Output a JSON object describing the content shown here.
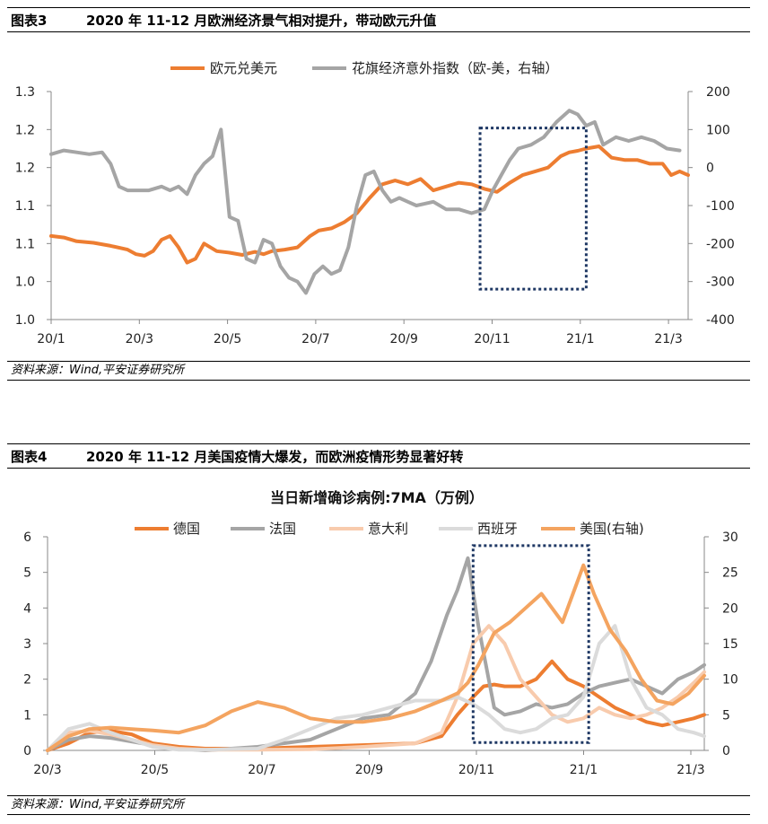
{
  "figure3": {
    "label": "图表3",
    "title": "2020 年 11-12 月欧洲经济景气相对提升，带动欧元升值",
    "source": "资料来源：Wind,平安证券研究所"
  },
  "figure4": {
    "label": "图表4",
    "title": "2020 年 11-12 月美国疫情大爆发，而欧洲疫情形势显著好转",
    "source": "资料来源：Wind,平安证券研究所"
  },
  "chart_data": [
    {
      "type": "line",
      "title": "",
      "x_ticks": [
        "20/1",
        "20/3",
        "20/5",
        "20/7",
        "20/9",
        "20/11",
        "21/1",
        "21/3"
      ],
      "y_left_ticks": [
        "1.3",
        "1.2",
        "1.2",
        "1.1",
        "1.1",
        "1.0",
        "1.0"
      ],
      "y_right_ticks": [
        "200",
        "100",
        "0",
        "-100",
        "-200",
        "-300",
        "-400"
      ],
      "ylim_left": [
        1.0,
        1.3
      ],
      "ylim_right": [
        -400,
        200
      ],
      "xlim": [
        0,
        15
      ],
      "series": [
        {
          "name": "欧元兑美元",
          "axis": "left",
          "color": "#ED7D31",
          "x": [
            0,
            0.3,
            0.6,
            1.0,
            1.4,
            1.8,
            2.0,
            2.2,
            2.4,
            2.6,
            2.8,
            3.0,
            3.2,
            3.4,
            3.6,
            3.9,
            4.2,
            4.5,
            4.8,
            5.0,
            5.2,
            5.5,
            5.8,
            6.1,
            6.3,
            6.6,
            6.9,
            7.2,
            7.5,
            7.8,
            8.1,
            8.4,
            8.7,
            9.0,
            9.3,
            9.6,
            9.9,
            10.2,
            10.5,
            10.8,
            11.1,
            11.4,
            11.7,
            12.0,
            12.2,
            12.4,
            12.6,
            12.9,
            13.2,
            13.5,
            13.8,
            14.1,
            14.4,
            14.6,
            14.8,
            15.0
          ],
          "values": [
            1.11,
            1.108,
            1.103,
            1.101,
            1.097,
            1.092,
            1.086,
            1.084,
            1.09,
            1.105,
            1.11,
            1.095,
            1.075,
            1.08,
            1.1,
            1.09,
            1.088,
            1.085,
            1.089,
            1.086,
            1.09,
            1.092,
            1.095,
            1.11,
            1.117,
            1.12,
            1.128,
            1.14,
            1.16,
            1.178,
            1.183,
            1.178,
            1.185,
            1.17,
            1.175,
            1.18,
            1.178,
            1.172,
            1.168,
            1.18,
            1.19,
            1.195,
            1.2,
            1.215,
            1.22,
            1.222,
            1.225,
            1.228,
            1.213,
            1.21,
            1.21,
            1.205,
            1.205,
            1.19,
            1.195,
            1.19
          ]
        },
        {
          "name": "花旗经济意外指数（欧-美，右轴）",
          "axis": "right",
          "color": "#A5A5A5",
          "x": [
            0,
            0.3,
            0.6,
            0.9,
            1.2,
            1.4,
            1.6,
            1.8,
            2.0,
            2.3,
            2.6,
            2.8,
            3.0,
            3.2,
            3.4,
            3.6,
            3.8,
            4.0,
            4.2,
            4.4,
            4.6,
            4.8,
            5.0,
            5.2,
            5.4,
            5.6,
            5.8,
            6.0,
            6.2,
            6.4,
            6.6,
            6.8,
            7.0,
            7.2,
            7.4,
            7.6,
            7.8,
            8.0,
            8.2,
            8.4,
            8.6,
            8.8,
            9.0,
            9.3,
            9.6,
            9.9,
            10.2,
            10.4,
            10.6,
            10.8,
            11.0,
            11.3,
            11.6,
            11.9,
            12.2,
            12.4,
            12.6,
            12.8,
            13.0,
            13.3,
            13.6,
            13.9,
            14.2,
            14.5,
            14.8
          ],
          "values": [
            35,
            45,
            40,
            35,
            40,
            10,
            -50,
            -60,
            -60,
            -60,
            -50,
            -60,
            -50,
            -70,
            -20,
            10,
            30,
            100,
            -130,
            -140,
            -240,
            -250,
            -190,
            -200,
            -260,
            -290,
            -300,
            -330,
            -280,
            -260,
            -280,
            -270,
            -210,
            -100,
            -20,
            -10,
            -60,
            -90,
            -80,
            -90,
            -100,
            -95,
            -90,
            -110,
            -110,
            -120,
            -110,
            -60,
            -20,
            20,
            50,
            60,
            80,
            120,
            150,
            140,
            110,
            120,
            60,
            80,
            70,
            80,
            70,
            50,
            45
          ]
        }
      ],
      "legend": [
        "欧元兑美元",
        "花旗经济意外指数（欧-美，右轴）"
      ],
      "highlight_box": {
        "x_range": [
          10.1,
          12.6
        ],
        "y_range_left": [
          1.04,
          1.252
        ]
      }
    },
    {
      "type": "line",
      "title": "当日新增确诊病例:7MA（万例）",
      "x_ticks": [
        "20/3",
        "20/5",
        "20/7",
        "20/9",
        "20/11",
        "21/1",
        "21/3"
      ],
      "y_left_ticks": [
        "6",
        "5",
        "4",
        "3",
        "2",
        "1",
        "0"
      ],
      "y_right_ticks": [
        "30",
        "25",
        "20",
        "15",
        "10",
        "5",
        "0"
      ],
      "ylim_left": [
        0,
        6
      ],
      "ylim_right": [
        0,
        30
      ],
      "xlim": [
        0,
        12.5
      ],
      "series": [
        {
          "name": "德国",
          "axis": "left",
          "color": "#ED7D31",
          "x": [
            0,
            0.4,
            0.8,
            1.2,
            1.6,
            2.0,
            2.5,
            3.0,
            4.0,
            5.0,
            6.0,
            7.0,
            7.5,
            7.8,
            8.1,
            8.3,
            8.5,
            8.7,
            9.0,
            9.3,
            9.6,
            9.9,
            10.2,
            10.5,
            10.8,
            11.1,
            11.4,
            11.7,
            12.0,
            12.3,
            12.5
          ],
          "values": [
            0,
            0.2,
            0.5,
            0.55,
            0.45,
            0.2,
            0.1,
            0.05,
            0.05,
            0.1,
            0.15,
            0.2,
            0.4,
            1.0,
            1.5,
            1.8,
            1.85,
            1.8,
            1.8,
            2.0,
            2.5,
            2.0,
            1.8,
            1.5,
            1.2,
            1.0,
            0.8,
            0.7,
            0.8,
            0.9,
            1.0
          ]
        },
        {
          "name": "法国",
          "axis": "left",
          "color": "#A5A5A5",
          "x": [
            0,
            0.4,
            0.8,
            1.2,
            1.6,
            2.0,
            2.5,
            3.0,
            4.0,
            5.0,
            5.5,
            6.0,
            6.5,
            7.0,
            7.3,
            7.6,
            7.8,
            8.0,
            8.2,
            8.5,
            8.7,
            9.0,
            9.3,
            9.6,
            9.9,
            10.2,
            10.5,
            10.8,
            11.1,
            11.4,
            11.7,
            12.0,
            12.3,
            12.5
          ],
          "values": [
            0,
            0.3,
            0.4,
            0.35,
            0.25,
            0.15,
            0.05,
            0.0,
            0.1,
            0.3,
            0.6,
            0.9,
            1.0,
            1.6,
            2.5,
            3.8,
            4.5,
            5.4,
            3.5,
            1.2,
            1.0,
            1.1,
            1.3,
            1.2,
            1.3,
            1.6,
            1.8,
            1.9,
            2.0,
            1.8,
            1.6,
            2.0,
            2.2,
            2.4
          ]
        },
        {
          "name": "意大利",
          "axis": "left",
          "color": "#F8CBAD",
          "x": [
            0,
            0.4,
            0.8,
            1.2,
            1.6,
            2.0,
            2.5,
            3.0,
            4.0,
            5.0,
            6.0,
            7.0,
            7.5,
            7.8,
            8.1,
            8.4,
            8.7,
            9.0,
            9.3,
            9.6,
            9.9,
            10.2,
            10.5,
            10.8,
            11.1,
            11.4,
            11.7,
            12.0,
            12.3,
            12.5
          ],
          "values": [
            0,
            0.5,
            0.55,
            0.45,
            0.3,
            0.15,
            0.05,
            0.02,
            0.02,
            0.03,
            0.1,
            0.2,
            0.5,
            1.5,
            3.0,
            3.5,
            3.0,
            2.0,
            1.5,
            1.0,
            0.8,
            0.9,
            1.2,
            1.0,
            0.9,
            1.0,
            1.2,
            1.5,
            1.9,
            2.2
          ]
        },
        {
          "name": "西班牙",
          "axis": "left",
          "color": "#DBDBDB",
          "x": [
            0,
            0.4,
            0.8,
            1.2,
            1.6,
            2.0,
            2.5,
            3.0,
            4.0,
            4.5,
            5.0,
            5.5,
            6.0,
            6.5,
            7.0,
            7.5,
            7.8,
            8.1,
            8.4,
            8.7,
            9.0,
            9.3,
            9.6,
            9.9,
            10.2,
            10.5,
            10.8,
            11.1,
            11.4,
            11.7,
            12.0,
            12.3,
            12.5
          ],
          "values": [
            0,
            0.6,
            0.75,
            0.5,
            0.3,
            0.1,
            0.02,
            0.02,
            0.05,
            0.3,
            0.6,
            0.9,
            1.0,
            1.2,
            1.4,
            1.4,
            1.5,
            1.3,
            1.0,
            0.6,
            0.5,
            0.6,
            0.9,
            1.0,
            1.5,
            3.0,
            3.5,
            2.0,
            1.2,
            1.0,
            0.6,
            0.5,
            0.4
          ]
        },
        {
          "name": "美国(右轴)",
          "axis": "right",
          "color": "#F4A460",
          "x": [
            0,
            0.4,
            0.8,
            1.2,
            1.6,
            2.0,
            2.5,
            3.0,
            3.5,
            4.0,
            4.5,
            5.0,
            5.5,
            6.0,
            6.5,
            7.0,
            7.5,
            7.8,
            8.0,
            8.2,
            8.5,
            8.8,
            9.1,
            9.4,
            9.6,
            9.8,
            10.0,
            10.2,
            10.4,
            10.7,
            11.0,
            11.3,
            11.6,
            11.9,
            12.2,
            12.5
          ],
          "values": [
            0,
            2,
            3,
            3.2,
            3.0,
            2.8,
            2.5,
            3.5,
            5.5,
            6.8,
            6.0,
            4.5,
            4.0,
            4.0,
            4.5,
            5.5,
            7.0,
            8.0,
            9.5,
            12.0,
            16.5,
            18.0,
            20.0,
            22.0,
            20.0,
            18.0,
            22.0,
            26.0,
            22.0,
            17.0,
            14.0,
            10.0,
            7.0,
            6.5,
            8.0,
            10.5
          ]
        }
      ],
      "legend": [
        "德国",
        "法国",
        "意大利",
        "西班牙",
        "美国(右轴)"
      ],
      "highlight_box": {
        "x_range": [
          8.1,
          10.3
        ],
        "y_range_left": [
          0.22,
          5.75
        ]
      }
    }
  ]
}
